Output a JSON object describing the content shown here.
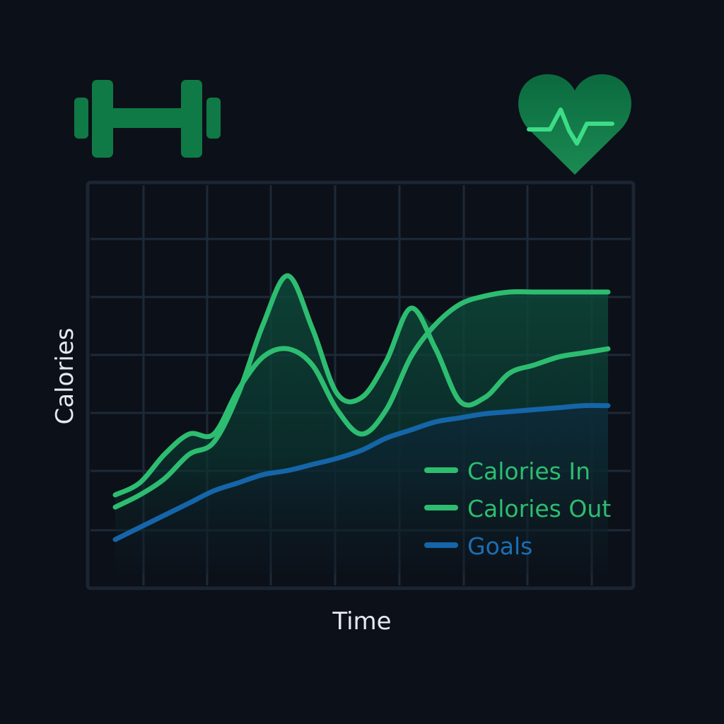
{
  "icons": {
    "left": "dumbbell-icon",
    "right": "heart-pulse-icon"
  },
  "colors": {
    "background": "#0c1018",
    "grid": "#1c2a38",
    "calories_in": "#2dbd70",
    "calories_out": "#2dbd70",
    "goals": "#1565a8",
    "fill": "#0a3b31",
    "icon_green": "#0f7a45",
    "axis_text": "#e6e9ee"
  },
  "chart_data": {
    "type": "line",
    "xlabel": "Time",
    "ylabel": "Calories",
    "grid": true,
    "legend_position": "bottom-right",
    "xlim": [
      0,
      10
    ],
    "ylim": [
      0,
      10
    ],
    "x": [
      0,
      0.5,
      1,
      1.5,
      2,
      2.5,
      3,
      3.5,
      4,
      4.5,
      5,
      5.5,
      6,
      6.5,
      7,
      7.5,
      8,
      8.5,
      9,
      9.5,
      10
    ],
    "series": [
      {
        "name": "Calories In",
        "color": "#2dbd70",
        "values": [
          2.3,
          2.6,
          3.3,
          3.8,
          3.8,
          4.9,
          5.7,
          5.9,
          5.5,
          4.4,
          3.8,
          4.4,
          5.7,
          6.5,
          7.0,
          7.2,
          7.3,
          7.3,
          7.3,
          7.3,
          7.3
        ]
      },
      {
        "name": "Calories Out",
        "color": "#2dbd70",
        "values": [
          2.0,
          2.3,
          2.7,
          3.3,
          3.6,
          4.8,
          6.5,
          7.7,
          6.4,
          4.8,
          4.7,
          5.6,
          6.9,
          5.9,
          4.6,
          4.7,
          5.3,
          5.5,
          5.7,
          5.8,
          5.9
        ]
      },
      {
        "name": "Goals",
        "color": "#1565a8",
        "values": [
          1.2,
          1.5,
          1.8,
          2.1,
          2.4,
          2.6,
          2.8,
          2.9,
          3.05,
          3.2,
          3.4,
          3.7,
          3.9,
          4.1,
          4.2,
          4.3,
          4.35,
          4.4,
          4.45,
          4.5,
          4.5
        ]
      }
    ]
  }
}
